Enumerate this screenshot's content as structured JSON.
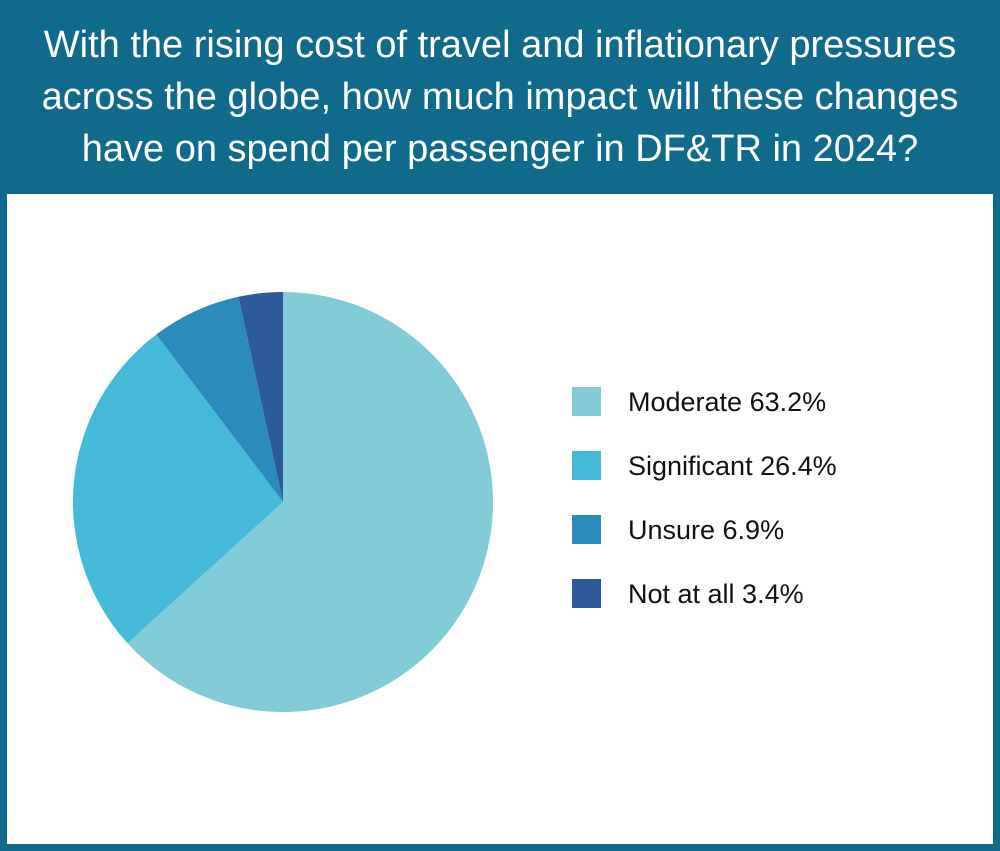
{
  "title": "With the rising cost of travel and inflationary pressures across the globe, how much impact will these changes have on spend per passenger in DF&TR in 2024?",
  "colors": {
    "header_bg": "#0f6a8c",
    "panel_bg": "#ffffff"
  },
  "chart_data": {
    "type": "pie",
    "title": "With the rising cost of travel and inflationary pressures across the globe, how much impact will these changes have on spend per passenger in DF&TR in 2024?",
    "legend_position": "right",
    "slices": [
      {
        "label": "Moderate",
        "value": 63.2,
        "legend": "Moderate 63.2%",
        "color": "#82ccd8"
      },
      {
        "label": "Significant",
        "value": 26.4,
        "legend": "Significant 26.4%",
        "color": "#45b9d8"
      },
      {
        "label": "Unsure",
        "value": 6.9,
        "legend": "Unsure 6.9%",
        "color": "#2b8bbd"
      },
      {
        "label": "Not at all",
        "value": 3.4,
        "legend": "Not at all 3.4%",
        "color": "#2d5a99"
      }
    ]
  }
}
